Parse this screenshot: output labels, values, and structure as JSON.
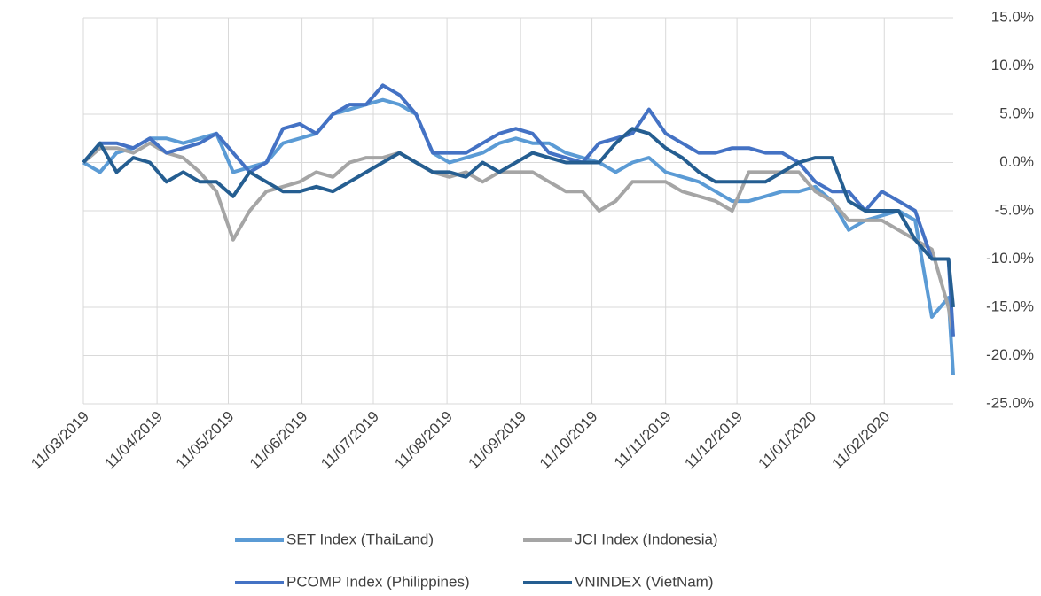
{
  "chart_data": {
    "type": "line",
    "x": [
      "11/03/2019",
      "18/03/2019",
      "25/03/2019",
      "01/04/2019",
      "08/04/2019",
      "15/04/2019",
      "22/04/2019",
      "29/04/2019",
      "06/05/2019",
      "13/05/2019",
      "20/05/2019",
      "27/05/2019",
      "03/06/2019",
      "10/06/2019",
      "17/06/2019",
      "24/06/2019",
      "01/07/2019",
      "08/07/2019",
      "15/07/2019",
      "22/07/2019",
      "29/07/2019",
      "05/08/2019",
      "12/08/2019",
      "19/08/2019",
      "26/08/2019",
      "02/09/2019",
      "09/09/2019",
      "16/09/2019",
      "23/09/2019",
      "30/09/2019",
      "07/10/2019",
      "14/10/2019",
      "21/10/2019",
      "28/10/2019",
      "04/11/2019",
      "11/11/2019",
      "18/11/2019",
      "25/11/2019",
      "02/12/2019",
      "09/12/2019",
      "16/12/2019",
      "23/12/2019",
      "30/12/2019",
      "06/01/2020",
      "13/01/2020",
      "20/01/2020",
      "27/01/2020",
      "03/02/2020",
      "10/02/2020",
      "17/02/2020",
      "24/02/2020",
      "02/03/2020",
      "09/03/2020",
      "11/03/2020"
    ],
    "series": [
      {
        "name": "SET Index (ThaiLand)",
        "color": "#5b9bd5",
        "values": [
          0,
          -1,
          1,
          1.5,
          2.5,
          2.5,
          2,
          2.5,
          3,
          -1,
          -0.5,
          0,
          2,
          2.5,
          3,
          5,
          5.5,
          6,
          6.5,
          6,
          5,
          1,
          0,
          0.5,
          1,
          2,
          2.5,
          2,
          2,
          1,
          0.5,
          0,
          -1,
          0,
          0.5,
          -1,
          -1.5,
          -2,
          -3,
          -4,
          -4,
          -3.5,
          -3,
          -3,
          -2.5,
          -4,
          -7,
          -6,
          -5.5,
          -5,
          -6,
          -16,
          -14,
          -22
        ]
      },
      {
        "name": "JCI Index (Indonesia)",
        "color": "#a5a5a5",
        "values": [
          0,
          1.5,
          1.5,
          1,
          2,
          1,
          0.5,
          -1,
          -3,
          -8,
          -5,
          -3,
          -2.5,
          -2,
          -1,
          -1.5,
          0,
          0.5,
          0.5,
          1,
          0,
          -1,
          -1.5,
          -1,
          -2,
          -1,
          -1,
          -1,
          -2,
          -3,
          -3,
          -5,
          -4,
          -2,
          -2,
          -2,
          -3,
          -3.5,
          -4,
          -5,
          -1,
          -1,
          -1,
          -1,
          -3,
          -4,
          -6,
          -6,
          -6,
          -7,
          -8,
          -9,
          -15,
          -18
        ]
      },
      {
        "name": "PCOMP Index (Philippines)",
        "color": "#4472c4",
        "values": [
          0,
          2,
          2,
          1.5,
          2.5,
          1,
          1.5,
          2,
          3,
          1,
          -1,
          0,
          3.5,
          4,
          3,
          5,
          6,
          6,
          8,
          7,
          5,
          1,
          1,
          1,
          2,
          3,
          3.5,
          3,
          1,
          0.5,
          0,
          2,
          2.5,
          3,
          5.5,
          3,
          2,
          1,
          1,
          1.5,
          1.5,
          1,
          1,
          0,
          -2,
          -3,
          -3,
          -5,
          -3,
          -4,
          -5,
          -10,
          -10,
          -18
        ]
      },
      {
        "name": "VNINDEX (VietNam)",
        "color": "#255e91",
        "values": [
          0,
          2,
          -1,
          0.5,
          0,
          -2,
          -1,
          -2,
          -2,
          -3.5,
          -1,
          -2,
          -3,
          -3,
          -2.5,
          -3,
          -2,
          -1,
          0,
          1,
          0,
          -1,
          -1,
          -1.5,
          0,
          -1,
          0,
          1,
          0.5,
          0,
          0,
          0,
          2,
          3.5,
          3,
          1.5,
          0.5,
          -1,
          -2,
          -2,
          -2,
          -2,
          -1,
          0,
          0.5,
          0.5,
          -4,
          -5,
          -5,
          -5,
          -8,
          -10,
          -10,
          -15
        ]
      }
    ],
    "xlim": [
      "11/03/2019",
      "11/03/2020"
    ],
    "xticks": [
      "11/03/2019",
      "11/04/2019",
      "11/05/2019",
      "11/06/2019",
      "11/07/2019",
      "11/08/2019",
      "11/09/2019",
      "11/10/2019",
      "11/11/2019",
      "11/12/2019",
      "11/01/2020",
      "11/02/2020"
    ],
    "ylim": [
      -25,
      15
    ],
    "yticks": [
      {
        "value": -25,
        "label": "-25.0%"
      },
      {
        "value": -20,
        "label": "-20.0%"
      },
      {
        "value": -15,
        "label": "-15.0%"
      },
      {
        "value": -10,
        "label": "-10.0%"
      },
      {
        "value": -5,
        "label": "-5.0%"
      },
      {
        "value": 0,
        "label": "0.0%"
      },
      {
        "value": 5,
        "label": "5.0%"
      },
      {
        "value": 10,
        "label": "10.0%"
      },
      {
        "value": 15,
        "label": "15.0%"
      }
    ],
    "grid": true
  }
}
